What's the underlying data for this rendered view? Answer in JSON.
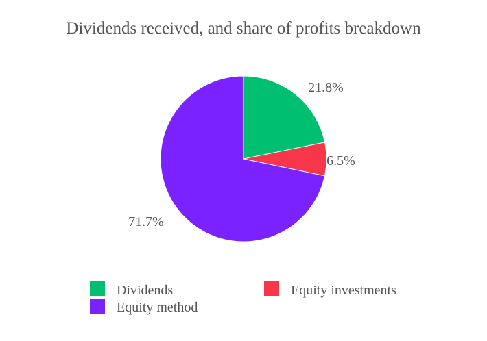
{
  "chart_data": {
    "type": "pie",
    "title": "Dividends received, and share of profits breakdown",
    "categories": [
      "Dividends",
      "Equity investments",
      "Equity method"
    ],
    "values": [
      21.8,
      6.5,
      71.7
    ],
    "value_labels": [
      "21.8%",
      "6.5%",
      "71.7%"
    ],
    "colors": [
      "#00BF71",
      "#F8364A",
      "#7A22FF"
    ],
    "legend": {
      "position": "bottom",
      "entries": [
        "Dividends",
        "Equity investments",
        "Equity method"
      ]
    }
  }
}
